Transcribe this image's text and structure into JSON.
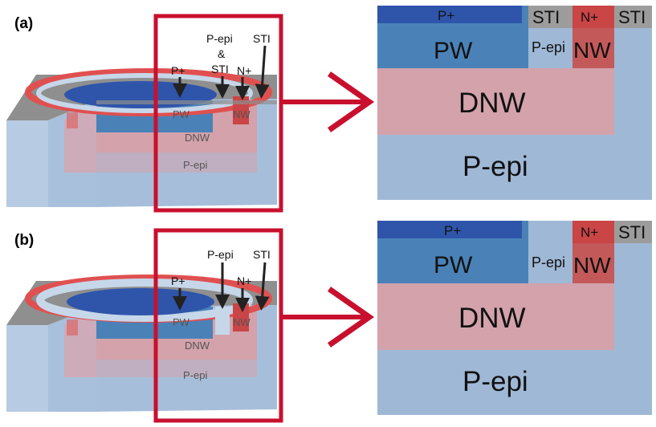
{
  "panels": [
    {
      "id": "a",
      "label": "(a)",
      "annotations": {
        "p_epi_sti": [
          "P-epi",
          "&",
          "STI"
        ],
        "sti": "STI",
        "p_plus": "P+",
        "n_plus": "N+"
      },
      "diagram_3d": {
        "pw": "PW",
        "nw": "NW",
        "dnw": "DNW",
        "pepi": "P-epi"
      },
      "zoom": {
        "p_plus": "P+",
        "sti_left": "STI",
        "n_plus": "N+",
        "sti_right": "STI",
        "pw": "PW",
        "p_epi_mid": "P-epi",
        "nw": "NW",
        "dnw": "DNW",
        "p_epi": "P-epi"
      }
    },
    {
      "id": "b",
      "label": "(b)",
      "annotations": {
        "p_epi": "P-epi",
        "sti": "STI",
        "p_plus": "P+",
        "n_plus": "N+"
      },
      "diagram_3d": {
        "pw": "PW",
        "nw": "NW",
        "dnw": "DNW",
        "pepi": "P-epi"
      },
      "zoom": {
        "p_plus": "P+",
        "n_plus": "N+",
        "sti_right": "STI",
        "pw": "PW",
        "p_epi_mid": "P-epi",
        "nw": "NW",
        "dnw": "DNW",
        "p_epi": "P-epi"
      }
    }
  ],
  "colors": {
    "p_epi": "#9fb8d6",
    "dnw": "#d3a2ab",
    "pw": "#4a82b8",
    "p_plus": "#2f55ab",
    "nw": "#c4595a",
    "n_plus": "#c94546",
    "sti": "#9c9c9c",
    "highlight": "#c8102e"
  }
}
